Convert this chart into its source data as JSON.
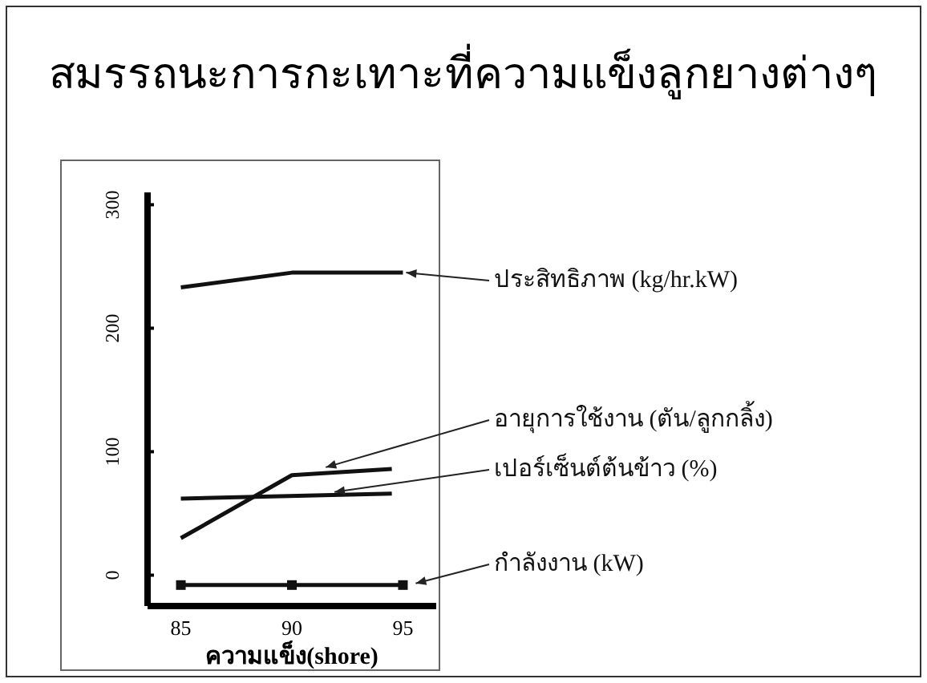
{
  "chart_data": {
    "type": "line",
    "title": "สมรรถนะการกะเทาะที่ความแข็งลูกยางต่างๆ",
    "xlabel": "ความแข็ง(shore)",
    "xlim": [
      83.5,
      96.5
    ],
    "xticks": [
      85,
      90,
      95
    ],
    "ylim": [
      -25,
      310
    ],
    "yticks": [
      0,
      100,
      200,
      300
    ],
    "grid": false,
    "line_style": "solid",
    "series": [
      {
        "name": "ประสิทธิภาพ (kg/hr.kW)",
        "color": "#111111",
        "x": [
          85,
          90,
          95
        ],
        "values": [
          233,
          245,
          245
        ],
        "marker": "none"
      },
      {
        "name": "อายุการใช้งาน (ตัน/ลูกกลิ้ง)",
        "color": "#111111",
        "x": [
          85,
          90,
          94.5
        ],
        "values": [
          30,
          81,
          86
        ],
        "marker": "none"
      },
      {
        "name": "เปอร์เซ็นต์ต้นข้าว (%)",
        "color": "#111111",
        "x": [
          85,
          94.5
        ],
        "values": [
          62,
          66
        ],
        "marker": "none"
      },
      {
        "name": "กำลังงาน  (kW)",
        "color": "#111111",
        "x": [
          85,
          90,
          95
        ],
        "values": [
          -8,
          -8,
          -8
        ],
        "marker": "square"
      }
    ]
  }
}
